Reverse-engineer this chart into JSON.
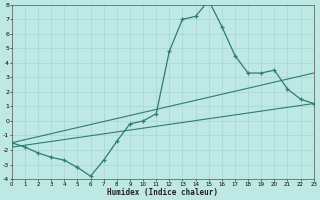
{
  "xlabel": "Humidex (Indice chaleur)",
  "bg_color": "#bee8e4",
  "grid_color": "#aad4d0",
  "line_color": "#2e7d6e",
  "xlim": [
    0,
    23
  ],
  "ylim": [
    -4,
    8
  ],
  "xticks": [
    0,
    1,
    2,
    3,
    4,
    5,
    6,
    7,
    8,
    9,
    10,
    11,
    12,
    13,
    14,
    15,
    16,
    17,
    18,
    19,
    20,
    21,
    22,
    23
  ],
  "yticks": [
    -4,
    -3,
    -2,
    -1,
    0,
    1,
    2,
    3,
    4,
    5,
    6,
    7,
    8
  ],
  "main_x": [
    0,
    1,
    2,
    3,
    4,
    5,
    6,
    7,
    8,
    9,
    10,
    11,
    12,
    13,
    14,
    15,
    16,
    17,
    18,
    19,
    20,
    21,
    22,
    23
  ],
  "main_y": [
    -1.5,
    -1.8,
    -2.2,
    -2.5,
    -2.7,
    -3.2,
    -3.8,
    -2.7,
    -1.4,
    -0.2,
    0.0,
    0.5,
    4.8,
    7.0,
    7.2,
    8.3,
    6.5,
    4.5,
    3.3,
    3.3,
    3.5,
    2.2,
    1.5,
    1.2
  ],
  "trend1_x": [
    0,
    23
  ],
  "trend1_y": [
    -1.8,
    1.2
  ],
  "trend2_x": [
    0,
    23
  ],
  "trend2_y": [
    -1.5,
    3.3
  ]
}
